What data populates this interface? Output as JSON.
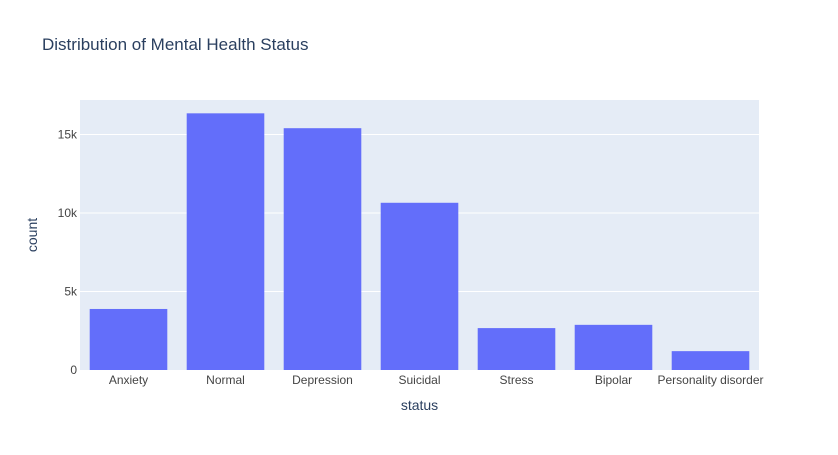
{
  "chart_data": {
    "type": "bar",
    "title": "Distribution of Mental Health Status",
    "xlabel": "status",
    "ylabel": "count",
    "categories": [
      "Anxiety",
      "Normal",
      "Depression",
      "Suicidal",
      "Stress",
      "Bipolar",
      "Personality disorder"
    ],
    "values": [
      3888,
      16351,
      15404,
      10653,
      2669,
      2877,
      1201
    ],
    "ylim": [
      0,
      17200
    ],
    "yticks": [
      0,
      5000,
      10000,
      15000
    ],
    "ytick_labels": [
      "0",
      "5k",
      "10k",
      "15k"
    ],
    "grid": true,
    "legend": false,
    "colors": {
      "bar": "#636efa",
      "plot_bg": "#e5ecf6",
      "grid": "#ffffff",
      "text": "#2a3f5f",
      "tick_text": "#444444"
    }
  }
}
